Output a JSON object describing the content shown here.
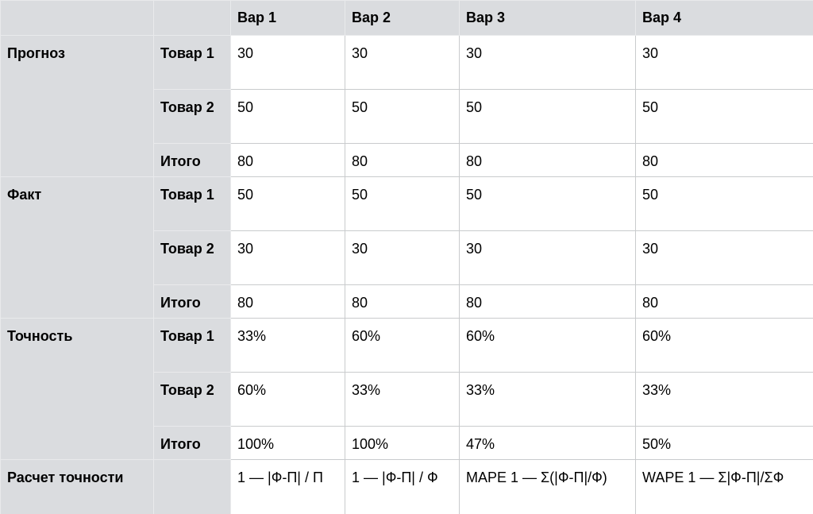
{
  "table": {
    "header": [
      "Вар 1",
      "Вар 2",
      "Вар 3",
      "Вар 4"
    ],
    "groups": [
      {
        "name": "Прогноз",
        "rows": [
          {
            "label": "Товар 1",
            "values": [
              30,
              30,
              30,
              30
            ]
          },
          {
            "label": "Товар 2",
            "values": [
              50,
              50,
              50,
              50
            ]
          },
          {
            "label": "Итого",
            "values": [
              80,
              80,
              80,
              80
            ]
          }
        ]
      },
      {
        "name": "Факт",
        "rows": [
          {
            "label": "Товар 1",
            "values": [
              50,
              50,
              50,
              50
            ]
          },
          {
            "label": "Товар 2",
            "values": [
              30,
              30,
              30,
              30
            ]
          },
          {
            "label": "Итого",
            "values": [
              80,
              80,
              80,
              80
            ]
          }
        ]
      },
      {
        "name": "Точность",
        "rows": [
          {
            "label": "Товар 1",
            "values": [
              "33%",
              "60%",
              "60%",
              "60%"
            ]
          },
          {
            "label": "Товар 2",
            "values": [
              "60%",
              "33%",
              "33%",
              "33%"
            ]
          },
          {
            "label": "Итого",
            "values": [
              "100%",
              "100%",
              "47%",
              "50%"
            ]
          }
        ]
      }
    ],
    "footer": {
      "name": "Расчет точности",
      "values": [
        "1 — |Ф-П| / П",
        "1 — |Ф-П| / Ф",
        "MAPE 1 — Σ(|Ф-П|/Ф)",
        "WAPE 1 — Σ|Ф-П|/ΣФ"
      ]
    }
  }
}
